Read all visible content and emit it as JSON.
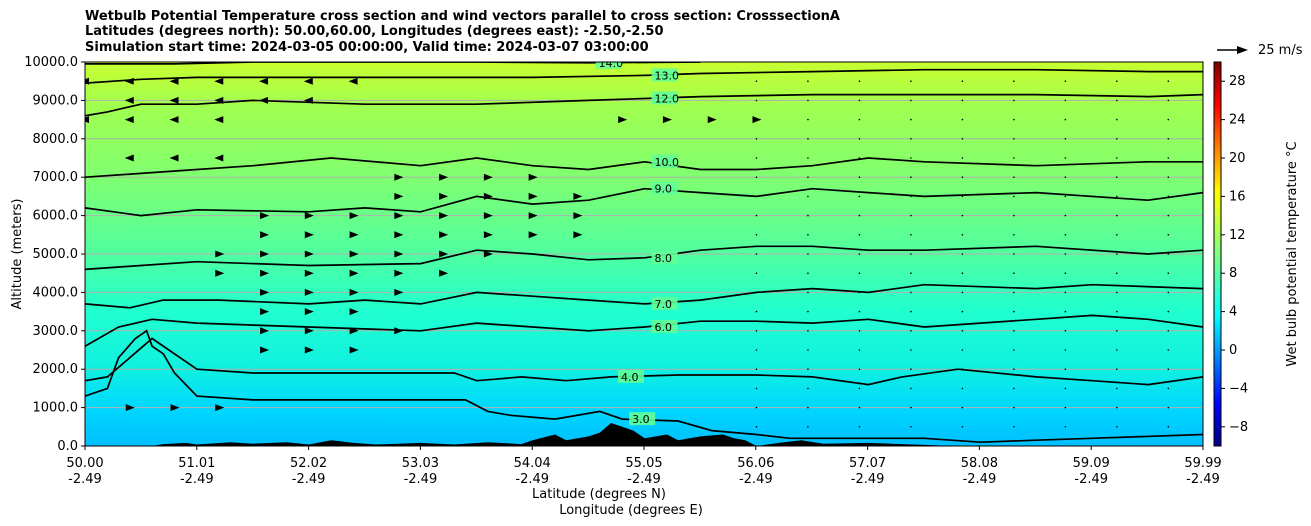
{
  "chart_data": {
    "type": "contour",
    "title_lines": [
      "Wetbulb Potential Temperature cross section and wind vectors parallel to cross section: CrosssectionA",
      "Latitudes (degrees north): 50.00,60.00, Longitudes (degrees east): -2.50,-2.50",
      "Simulation start time: 2024-03-05 00:00:00, Valid time: 2024-03-07 03:00:00"
    ],
    "xlabel_lines": [
      "Latitude (degrees N)",
      "Longitude (degrees E)"
    ],
    "ylabel": "Altitude (meters)",
    "xlim": [
      50.0,
      59.99
    ],
    "ylim": [
      0,
      10000
    ],
    "x_ticks": [
      {
        "lat": "50.00",
        "lon": "-2.49"
      },
      {
        "lat": "51.01",
        "lon": "-2.49"
      },
      {
        "lat": "52.02",
        "lon": "-2.49"
      },
      {
        "lat": "53.03",
        "lon": "-2.49"
      },
      {
        "lat": "54.04",
        "lon": "-2.49"
      },
      {
        "lat": "55.05",
        "lon": "-2.49"
      },
      {
        "lat": "56.06",
        "lon": "-2.49"
      },
      {
        "lat": "57.07",
        "lon": "-2.49"
      },
      {
        "lat": "58.08",
        "lon": "-2.49"
      },
      {
        "lat": "59.09",
        "lon": "-2.49"
      },
      {
        "lat": "59.99",
        "lon": "-2.49"
      }
    ],
    "y_ticks": [
      "0.0",
      "1000.0",
      "2000.0",
      "3000.0",
      "4000.0",
      "5000.0",
      "6000.0",
      "7000.0",
      "8000.0",
      "9000.0",
      "10000.0"
    ],
    "grid": true,
    "colorbar": {
      "label": "Wet bulb potential temperature °C",
      "ticks": [
        "−8",
        "−4",
        "0",
        "4",
        "8",
        "12",
        "16",
        "20",
        "24",
        "28"
      ],
      "range": [
        -10,
        30
      ],
      "colormap": "jet"
    },
    "quiver_key": {
      "label": "25 m/s"
    },
    "contours": [
      {
        "level": "3.0",
        "points": [
          [
            50.0,
            1300
          ],
          [
            50.2,
            1500
          ],
          [
            50.3,
            2300
          ],
          [
            50.45,
            2800
          ],
          [
            50.55,
            3000
          ],
          [
            50.6,
            2600
          ],
          [
            50.7,
            2400
          ],
          [
            50.8,
            1900
          ],
          [
            51.0,
            1300
          ],
          [
            51.5,
            1200
          ],
          [
            52.5,
            1200
          ],
          [
            53.4,
            1200
          ],
          [
            53.6,
            900
          ],
          [
            53.8,
            800
          ],
          [
            54.2,
            700
          ],
          [
            54.6,
            900
          ],
          [
            54.8,
            700
          ],
          [
            55.3,
            650
          ],
          [
            55.6,
            400
          ],
          [
            56.0,
            300
          ],
          [
            56.3,
            200
          ],
          [
            57.0,
            200
          ],
          [
            57.5,
            200
          ],
          [
            58.0,
            100
          ],
          [
            58.5,
            150
          ],
          [
            59.0,
            200
          ],
          [
            59.99,
            300
          ]
        ]
      },
      {
        "level": "4.0",
        "points": [
          [
            50.0,
            1700
          ],
          [
            50.2,
            1800
          ],
          [
            50.4,
            2300
          ],
          [
            50.6,
            2800
          ],
          [
            51.0,
            2000
          ],
          [
            51.5,
            1900
          ],
          [
            52.5,
            1900
          ],
          [
            53.3,
            1900
          ],
          [
            53.5,
            1700
          ],
          [
            53.9,
            1800
          ],
          [
            54.3,
            1700
          ],
          [
            54.7,
            1800
          ],
          [
            55.3,
            1850
          ],
          [
            56.0,
            1850
          ],
          [
            56.5,
            1800
          ],
          [
            57.0,
            1600
          ],
          [
            57.3,
            1800
          ],
          [
            57.8,
            2000
          ],
          [
            58.5,
            1800
          ],
          [
            59.0,
            1700
          ],
          [
            59.5,
            1600
          ],
          [
            59.99,
            1800
          ]
        ]
      },
      {
        "level": "6.0",
        "points": [
          [
            50.0,
            2600
          ],
          [
            50.3,
            3100
          ],
          [
            50.6,
            3300
          ],
          [
            51.0,
            3200
          ],
          [
            52.0,
            3100
          ],
          [
            53.0,
            3000
          ],
          [
            53.5,
            3200
          ],
          [
            54.0,
            3100
          ],
          [
            54.5,
            3000
          ],
          [
            55.0,
            3100
          ],
          [
            55.5,
            3250
          ],
          [
            56.0,
            3250
          ],
          [
            56.5,
            3200
          ],
          [
            57.0,
            3300
          ],
          [
            57.5,
            3100
          ],
          [
            58.5,
            3300
          ],
          [
            59.0,
            3400
          ],
          [
            59.5,
            3300
          ],
          [
            59.99,
            3100
          ]
        ]
      },
      {
        "level": "7.0",
        "points": [
          [
            50.0,
            3700
          ],
          [
            50.4,
            3600
          ],
          [
            50.7,
            3800
          ],
          [
            51.2,
            3800
          ],
          [
            52.0,
            3700
          ],
          [
            52.5,
            3800
          ],
          [
            53.0,
            3700
          ],
          [
            53.5,
            4000
          ],
          [
            54.0,
            3900
          ],
          [
            54.5,
            3800
          ],
          [
            55.0,
            3700
          ],
          [
            55.5,
            3800
          ],
          [
            56.0,
            4000
          ],
          [
            56.5,
            4100
          ],
          [
            57.0,
            4000
          ],
          [
            57.5,
            4200
          ],
          [
            58.5,
            4100
          ],
          [
            59.0,
            4200
          ],
          [
            59.99,
            4100
          ]
        ]
      },
      {
        "level": "8.0",
        "points": [
          [
            50.0,
            4600
          ],
          [
            50.5,
            4700
          ],
          [
            51.0,
            4800
          ],
          [
            52.0,
            4700
          ],
          [
            53.0,
            4750
          ],
          [
            53.5,
            5100
          ],
          [
            54.0,
            5000
          ],
          [
            54.5,
            4850
          ],
          [
            55.0,
            4900
          ],
          [
            55.5,
            5100
          ],
          [
            56.0,
            5200
          ],
          [
            56.5,
            5200
          ],
          [
            57.0,
            5100
          ],
          [
            57.5,
            5100
          ],
          [
            58.5,
            5200
          ],
          [
            59.5,
            5000
          ],
          [
            59.99,
            5100
          ]
        ]
      },
      {
        "level": "9.0",
        "points": [
          [
            50.0,
            6200
          ],
          [
            50.5,
            6000
          ],
          [
            51.0,
            6150
          ],
          [
            52.0,
            6100
          ],
          [
            52.5,
            6200
          ],
          [
            53.0,
            6100
          ],
          [
            53.5,
            6500
          ],
          [
            54.0,
            6300
          ],
          [
            54.5,
            6400
          ],
          [
            55.0,
            6700
          ],
          [
            55.5,
            6600
          ],
          [
            56.0,
            6500
          ],
          [
            56.5,
            6700
          ],
          [
            57.0,
            6600
          ],
          [
            57.5,
            6500
          ],
          [
            58.5,
            6600
          ],
          [
            59.5,
            6400
          ],
          [
            59.99,
            6600
          ]
        ]
      },
      {
        "level": "10.0",
        "points": [
          [
            50.0,
            7000
          ],
          [
            50.5,
            7100
          ],
          [
            51.0,
            7200
          ],
          [
            51.5,
            7300
          ],
          [
            52.2,
            7500
          ],
          [
            53.0,
            7300
          ],
          [
            53.5,
            7500
          ],
          [
            54.0,
            7300
          ],
          [
            54.5,
            7200
          ],
          [
            55.0,
            7400
          ],
          [
            55.5,
            7200
          ],
          [
            56.0,
            7200
          ],
          [
            56.5,
            7300
          ],
          [
            57.0,
            7500
          ],
          [
            57.5,
            7400
          ],
          [
            58.5,
            7300
          ],
          [
            59.5,
            7400
          ],
          [
            59.99,
            7400
          ]
        ]
      },
      {
        "level": "12.0",
        "points": [
          [
            50.0,
            8600
          ],
          [
            50.2,
            8700
          ],
          [
            50.5,
            8900
          ],
          [
            51.0,
            8900
          ],
          [
            51.5,
            9000
          ],
          [
            52.5,
            8900
          ],
          [
            53.5,
            8900
          ],
          [
            54.5,
            9000
          ],
          [
            55.0,
            9050
          ],
          [
            55.5,
            9100
          ],
          [
            56.5,
            9150
          ],
          [
            57.5,
            9150
          ],
          [
            58.5,
            9150
          ],
          [
            59.5,
            9100
          ],
          [
            59.99,
            9150
          ]
        ]
      },
      {
        "level": "13.0",
        "points": [
          [
            50.0,
            9450
          ],
          [
            50.5,
            9550
          ],
          [
            51.0,
            9600
          ],
          [
            52.0,
            9600
          ],
          [
            53.0,
            9600
          ],
          [
            54.0,
            9600
          ],
          [
            55.0,
            9650
          ],
          [
            55.5,
            9700
          ],
          [
            56.5,
            9750
          ],
          [
            57.5,
            9800
          ],
          [
            58.5,
            9800
          ],
          [
            59.5,
            9750
          ],
          [
            59.99,
            9750
          ]
        ]
      },
      {
        "level": "14.0",
        "points": [
          [
            50.0,
            9950
          ],
          [
            50.8,
            9950
          ],
          [
            51.5,
            10000
          ],
          [
            52.5,
            10000
          ],
          [
            53.5,
            10000
          ],
          [
            54.5,
            9980
          ],
          [
            55.5,
            10000
          ]
        ]
      }
    ],
    "terrain": [
      [
        50.0,
        0
      ],
      [
        50.6,
        0
      ],
      [
        50.7,
        50
      ],
      [
        50.9,
        80
      ],
      [
        51.0,
        40
      ],
      [
        51.3,
        100
      ],
      [
        51.5,
        60
      ],
      [
        51.8,
        100
      ],
      [
        52.0,
        40
      ],
      [
        52.2,
        150
      ],
      [
        52.4,
        80
      ],
      [
        52.6,
        40
      ],
      [
        53.0,
        80
      ],
      [
        53.3,
        40
      ],
      [
        53.6,
        100
      ],
      [
        53.9,
        50
      ],
      [
        54.0,
        150
      ],
      [
        54.2,
        300
      ],
      [
        54.3,
        150
      ],
      [
        54.5,
        250
      ],
      [
        54.6,
        350
      ],
      [
        54.7,
        600
      ],
      [
        54.8,
        500
      ],
      [
        54.9,
        400
      ],
      [
        55.0,
        200
      ],
      [
        55.2,
        300
      ],
      [
        55.3,
        150
      ],
      [
        55.5,
        250
      ],
      [
        55.7,
        300
      ],
      [
        55.8,
        200
      ],
      [
        55.9,
        150
      ],
      [
        56.0,
        0
      ],
      [
        56.2,
        80
      ],
      [
        56.4,
        150
      ],
      [
        56.6,
        60
      ],
      [
        57.0,
        80
      ],
      [
        57.2,
        60
      ],
      [
        57.4,
        40
      ],
      [
        57.6,
        20
      ],
      [
        57.7,
        0
      ],
      [
        59.99,
        0
      ]
    ],
    "wind_vectors": [
      {
        "altitude": 9500,
        "direction": "west",
        "columns": [
          50.0,
          50.4,
          50.8,
          51.2,
          51.6,
          52.0,
          52.4
        ]
      },
      {
        "altitude": 9000,
        "direction": "west",
        "columns": [
          50.4,
          50.8,
          51.2,
          51.6,
          52.0
        ]
      },
      {
        "altitude": 8500,
        "direction": "west",
        "columns": [
          50.0,
          50.4,
          50.8,
          51.2
        ]
      },
      {
        "altitude": 8500,
        "direction": "east",
        "columns": [
          54.8,
          55.2,
          55.6,
          56.0
        ]
      },
      {
        "altitude": 7500,
        "direction": "west",
        "columns": [
          50.4,
          50.8,
          51.2
        ]
      },
      {
        "altitude": 7000,
        "direction": "east",
        "columns": [
          52.8,
          53.2,
          53.6,
          54.0
        ]
      },
      {
        "altitude": 6500,
        "direction": "east",
        "columns": [
          52.8,
          53.2,
          53.6,
          54.0,
          54.4
        ]
      },
      {
        "altitude": 6000,
        "direction": "east",
        "columns": [
          51.6,
          52.0,
          52.4,
          52.8,
          53.2,
          53.6,
          54.0,
          54.4
        ]
      },
      {
        "altitude": 5500,
        "direction": "east",
        "columns": [
          51.6,
          52.0,
          52.4,
          52.8,
          53.2,
          53.6,
          54.0,
          54.4
        ]
      },
      {
        "altitude": 5000,
        "direction": "east",
        "columns": [
          51.2,
          51.6,
          52.0,
          52.4,
          52.8,
          53.2,
          53.6
        ]
      },
      {
        "altitude": 4500,
        "direction": "east",
        "columns": [
          51.2,
          51.6,
          52.0,
          52.4,
          52.8,
          53.2
        ]
      },
      {
        "altitude": 4000,
        "direction": "east",
        "columns": [
          51.6,
          52.0,
          52.4,
          52.8
        ]
      },
      {
        "altitude": 3500,
        "direction": "east",
        "columns": [
          51.6,
          52.0,
          52.4
        ]
      },
      {
        "altitude": 3000,
        "direction": "east",
        "columns": [
          51.6,
          52.0,
          52.4,
          52.8
        ]
      },
      {
        "altitude": 2500,
        "direction": "east",
        "columns": [
          51.6,
          52.0,
          52.4
        ]
      },
      {
        "altitude": 1000,
        "direction": "east",
        "columns": [
          50.4,
          50.8,
          51.2
        ]
      }
    ]
  }
}
